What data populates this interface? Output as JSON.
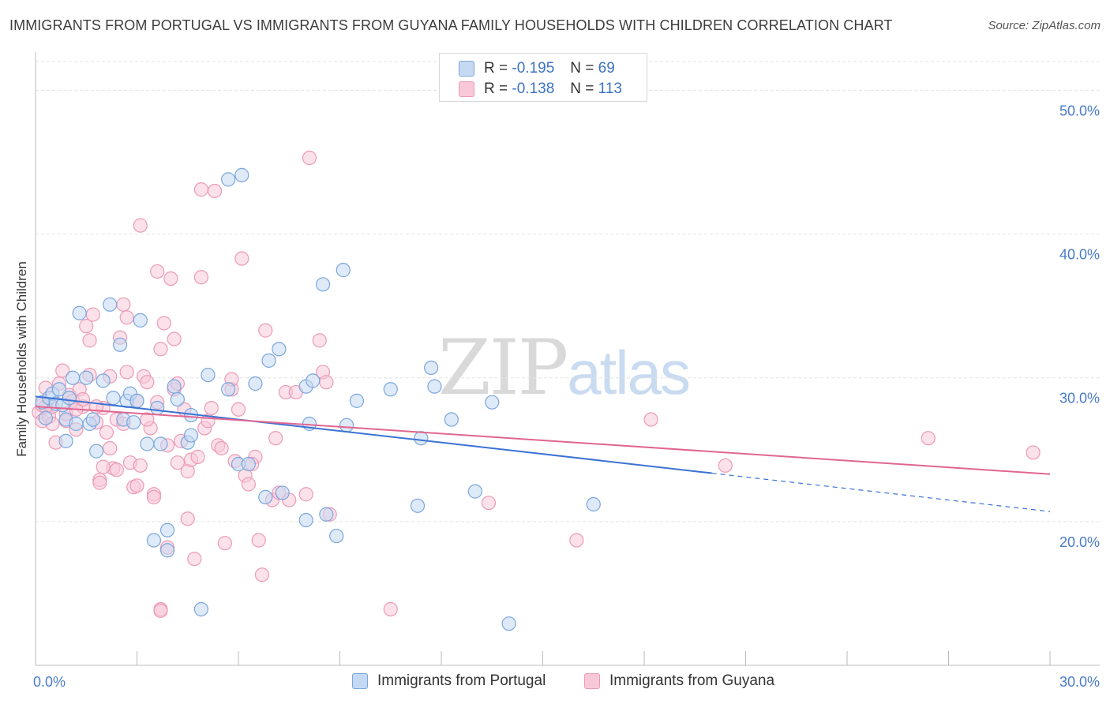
{
  "title": "IMMIGRANTS FROM PORTUGAL VS IMMIGRANTS FROM GUYANA FAMILY HOUSEHOLDS WITH CHILDREN CORRELATION CHART",
  "source": "Source: ZipAtlas.com",
  "watermark": {
    "zip": "ZIP",
    "atlas": "atlas"
  },
  "legend": {
    "r_label": "R =",
    "n_label": "N =",
    "portugal": {
      "r": "-0.195",
      "n": "69"
    },
    "guyana": {
      "r": "-0.138",
      "n": "113"
    }
  },
  "colors": {
    "portugal_fill": "#c5d9f3",
    "portugal_stroke": "#7aa6dc",
    "portugal_line": "#3b72d4",
    "guyana_fill": "#f8c8d8",
    "guyana_stroke": "#ec9ab6",
    "guyana_line": "#e06690",
    "grid": "#e3e3e3",
    "axis_label": "#4a7cc7"
  },
  "chart_data": {
    "type": "scatter",
    "title": "IMMIGRANTS FROM PORTUGAL VS IMMIGRANTS FROM GUYANA FAMILY HOUSEHOLDS WITH CHILDREN CORRELATION CHART",
    "xlabel": "",
    "ylabel": "Family Households with Children",
    "xlim": [
      0,
      30
    ],
    "ylim": [
      10,
      52
    ],
    "x_tick_labels": [
      "0.0%",
      "30.0%"
    ],
    "y_ticks": [
      20,
      30,
      40,
      50
    ],
    "y_tick_labels": [
      "20.0%",
      "30.0%",
      "40.0%",
      "50.0%"
    ],
    "grid": true,
    "legend_position": "top-center",
    "series": [
      {
        "name": "Immigrants from Portugal",
        "trend": {
          "x_start": 0,
          "y_start": 28.7,
          "x_solid_end": 20,
          "x_end": 30,
          "y_end": 20.7
        },
        "points": [
          [
            0.2,
            28.3
          ],
          [
            0.3,
            27.2
          ],
          [
            0.4,
            28.6
          ],
          [
            0.5,
            28.9
          ],
          [
            0.6,
            28.2
          ],
          [
            0.7,
            29.2
          ],
          [
            0.8,
            28.1
          ],
          [
            0.9,
            27.1
          ],
          [
            0.9,
            25.6
          ],
          [
            1.0,
            28.6
          ],
          [
            1.1,
            30.0
          ],
          [
            1.2,
            26.8
          ],
          [
            1.3,
            34.5
          ],
          [
            1.5,
            30.0
          ],
          [
            1.6,
            26.8
          ],
          [
            1.7,
            27.1
          ],
          [
            1.8,
            24.9
          ],
          [
            2.0,
            29.8
          ],
          [
            2.2,
            35.1
          ],
          [
            2.3,
            28.6
          ],
          [
            2.5,
            32.3
          ],
          [
            2.6,
            27.1
          ],
          [
            2.7,
            28.4
          ],
          [
            2.8,
            28.9
          ],
          [
            2.9,
            26.9
          ],
          [
            3.0,
            28.4
          ],
          [
            3.1,
            34.0
          ],
          [
            3.3,
            25.4
          ],
          [
            3.5,
            18.7
          ],
          [
            3.6,
            27.9
          ],
          [
            3.7,
            25.4
          ],
          [
            3.9,
            18.0
          ],
          [
            3.9,
            19.4
          ],
          [
            4.1,
            29.4
          ],
          [
            4.2,
            28.5
          ],
          [
            4.5,
            25.5
          ],
          [
            4.6,
            27.4
          ],
          [
            4.6,
            26.0
          ],
          [
            4.9,
            13.9
          ],
          [
            5.1,
            30.2
          ],
          [
            5.7,
            29.2
          ],
          [
            5.7,
            43.8
          ],
          [
            6.1,
            44.1
          ],
          [
            6.0,
            24.0
          ],
          [
            6.3,
            24.0
          ],
          [
            6.5,
            29.6
          ],
          [
            6.8,
            21.7
          ],
          [
            6.9,
            31.2
          ],
          [
            7.2,
            32.0
          ],
          [
            7.3,
            22.0
          ],
          [
            8.0,
            20.1
          ],
          [
            8.0,
            29.4
          ],
          [
            8.2,
            29.8
          ],
          [
            8.1,
            26.8
          ],
          [
            8.5,
            36.5
          ],
          [
            8.6,
            20.5
          ],
          [
            8.9,
            19.0
          ],
          [
            9.1,
            37.5
          ],
          [
            9.2,
            26.7
          ],
          [
            9.5,
            28.4
          ],
          [
            10.5,
            29.2
          ],
          [
            11.3,
            21.1
          ],
          [
            11.4,
            25.8
          ],
          [
            11.7,
            30.7
          ],
          [
            11.8,
            29.4
          ],
          [
            12.3,
            27.1
          ],
          [
            13.0,
            22.1
          ],
          [
            13.5,
            28.3
          ],
          [
            14.0,
            12.9
          ],
          [
            16.5,
            21.2
          ]
        ]
      },
      {
        "name": "Immigrants from Guyana",
        "trend": {
          "x_start": 0,
          "y_start": 28.0,
          "x_end": 30,
          "y_end": 23.3
        },
        "points": [
          [
            0.1,
            27.6
          ],
          [
            0.2,
            28.1
          ],
          [
            0.2,
            27.0
          ],
          [
            0.3,
            29.3
          ],
          [
            0.4,
            27.3
          ],
          [
            0.5,
            28.0
          ],
          [
            0.6,
            25.5
          ],
          [
            0.7,
            29.6
          ],
          [
            0.8,
            30.5
          ],
          [
            0.9,
            27.0
          ],
          [
            1.0,
            28.8
          ],
          [
            1.1,
            28.4
          ],
          [
            1.2,
            26.4
          ],
          [
            1.3,
            29.2
          ],
          [
            1.4,
            28.0
          ],
          [
            1.5,
            33.6
          ],
          [
            1.6,
            30.2
          ],
          [
            1.6,
            32.6
          ],
          [
            1.7,
            34.4
          ],
          [
            1.8,
            26.9
          ],
          [
            1.9,
            22.9
          ],
          [
            1.9,
            22.7
          ],
          [
            2.0,
            27.9
          ],
          [
            2.1,
            26.2
          ],
          [
            2.2,
            25.1
          ],
          [
            2.3,
            23.7
          ],
          [
            2.4,
            27.1
          ],
          [
            2.5,
            32.8
          ],
          [
            2.6,
            35.1
          ],
          [
            2.7,
            30.4
          ],
          [
            2.7,
            34.2
          ],
          [
            2.8,
            24.1
          ],
          [
            2.9,
            22.4
          ],
          [
            3.0,
            28.4
          ],
          [
            3.1,
            40.6
          ],
          [
            3.1,
            23.9
          ],
          [
            3.2,
            30.1
          ],
          [
            3.3,
            29.7
          ],
          [
            3.4,
            26.5
          ],
          [
            3.5,
            21.9
          ],
          [
            3.5,
            21.7
          ],
          [
            3.6,
            37.4
          ],
          [
            3.7,
            32.0
          ],
          [
            3.7,
            13.9
          ],
          [
            3.8,
            33.8
          ],
          [
            3.9,
            18.2
          ],
          [
            4.0,
            36.9
          ],
          [
            4.1,
            29.2
          ],
          [
            4.1,
            32.7
          ],
          [
            4.2,
            29.6
          ],
          [
            4.3,
            25.6
          ],
          [
            4.4,
            27.8
          ],
          [
            4.5,
            23.5
          ],
          [
            4.5,
            20.2
          ],
          [
            4.6,
            24.3
          ],
          [
            4.7,
            17.4
          ],
          [
            4.8,
            24.5
          ],
          [
            4.9,
            43.1
          ],
          [
            4.9,
            37.0
          ],
          [
            5.0,
            26.5
          ],
          [
            5.2,
            27.9
          ],
          [
            5.3,
            43.0
          ],
          [
            5.4,
            25.3
          ],
          [
            5.5,
            25.1
          ],
          [
            5.6,
            18.5
          ],
          [
            5.8,
            29.2
          ],
          [
            5.8,
            29.9
          ],
          [
            6.0,
            27.8
          ],
          [
            6.1,
            38.3
          ],
          [
            6.2,
            23.2
          ],
          [
            6.3,
            22.6
          ],
          [
            6.5,
            24.5
          ],
          [
            6.6,
            18.7
          ],
          [
            6.7,
            16.3
          ],
          [
            6.8,
            33.3
          ],
          [
            7.0,
            21.5
          ],
          [
            7.1,
            25.8
          ],
          [
            7.2,
            22.0
          ],
          [
            7.4,
            29.0
          ],
          [
            7.7,
            29.0
          ],
          [
            8.0,
            21.9
          ],
          [
            8.1,
            45.3
          ],
          [
            8.4,
            32.6
          ],
          [
            8.5,
            30.4
          ],
          [
            8.6,
            29.7
          ],
          [
            8.7,
            20.5
          ],
          [
            0.3,
            28.0
          ],
          [
            0.5,
            26.8
          ],
          [
            0.9,
            27.5
          ],
          [
            1.2,
            27.8
          ],
          [
            1.4,
            28.5
          ],
          [
            1.8,
            28.0
          ],
          [
            2.0,
            23.8
          ],
          [
            2.2,
            30.1
          ],
          [
            2.4,
            23.6
          ],
          [
            2.6,
            26.8
          ],
          [
            3.0,
            22.5
          ],
          [
            3.3,
            27.1
          ],
          [
            3.6,
            28.3
          ],
          [
            3.9,
            25.3
          ],
          [
            4.2,
            24.1
          ],
          [
            5.1,
            27.0
          ],
          [
            5.9,
            24.2
          ],
          [
            6.4,
            24.0
          ],
          [
            7.5,
            21.5
          ],
          [
            10.5,
            13.9
          ],
          [
            13.4,
            21.3
          ],
          [
            16.0,
            18.7
          ],
          [
            18.2,
            27.1
          ],
          [
            20.4,
            23.9
          ],
          [
            26.4,
            25.8
          ],
          [
            29.5,
            24.8
          ],
          [
            3.7,
            13.8
          ]
        ]
      }
    ]
  },
  "bottom_legend": {
    "portugal_label": "Immigrants from Portugal",
    "guyana_label": "Immigrants from Guyana"
  }
}
